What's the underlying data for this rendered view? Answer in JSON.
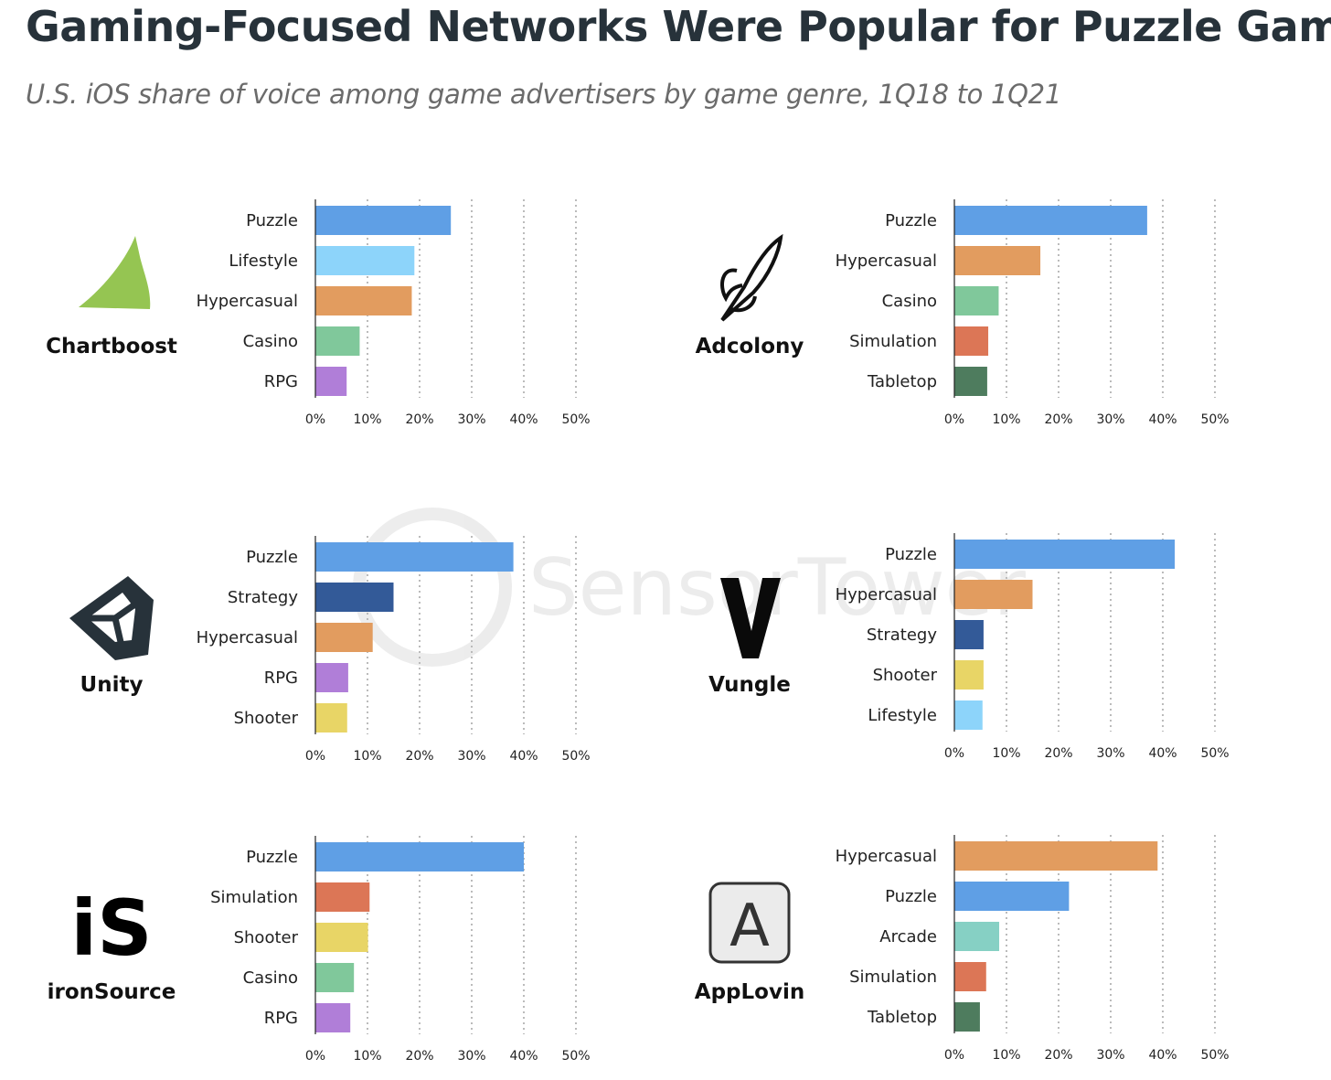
{
  "title": "Gaming-Focused Networks Were Popular for Puzzle Games",
  "subtitle": "U.S. iOS share of voice among game advertisers by game genre, 1Q18 to 1Q21",
  "watermark": "SensorTower",
  "colors": {
    "Puzzle": "#5f9fe5",
    "Lifestyle": "#8dd4fa",
    "Hypercasual": "#e29c5f",
    "Casino": "#80c89b",
    "RPG": "#b07ed8",
    "Simulation": "#dc7656",
    "Tabletop": "#4e7c5e",
    "Strategy": "#335a98",
    "Shooter": "#e8d566",
    "Arcade": "#86d0c4"
  },
  "chart_data": [
    {
      "type": "bar",
      "orientation": "horizontal",
      "network": "Chartboost",
      "categories": [
        "Puzzle",
        "Lifestyle",
        "Hypercasual",
        "Casino",
        "RPG"
      ],
      "values": [
        26,
        19,
        18.5,
        8.5,
        6
      ],
      "xlim": [
        0,
        50
      ],
      "xticks": [
        "0%",
        "10%",
        "20%",
        "30%",
        "40%",
        "50%"
      ]
    },
    {
      "type": "bar",
      "orientation": "horizontal",
      "network": "Adcolony",
      "categories": [
        "Puzzle",
        "Hypercasual",
        "Casino",
        "Simulation",
        "Tabletop"
      ],
      "values": [
        37,
        16.5,
        8.5,
        6.5,
        6.3
      ],
      "xlim": [
        0,
        50
      ],
      "xticks": [
        "0%",
        "10%",
        "20%",
        "30%",
        "40%",
        "50%"
      ]
    },
    {
      "type": "bar",
      "orientation": "horizontal",
      "network": "Unity",
      "categories": [
        "Puzzle",
        "Strategy",
        "Hypercasual",
        "RPG",
        "Shooter"
      ],
      "values": [
        38,
        15,
        11,
        6.3,
        6.1
      ],
      "xlim": [
        0,
        50
      ],
      "xticks": [
        "0%",
        "10%",
        "20%",
        "30%",
        "40%",
        "50%"
      ]
    },
    {
      "type": "bar",
      "orientation": "horizontal",
      "network": "Vungle",
      "categories": [
        "Puzzle",
        "Hypercasual",
        "Strategy",
        "Shooter",
        "Lifestyle"
      ],
      "values": [
        42.3,
        15,
        5.6,
        5.6,
        5.4
      ],
      "xlim": [
        0,
        50
      ],
      "xticks": [
        "0%",
        "10%",
        "20%",
        "30%",
        "40%",
        "50%"
      ]
    },
    {
      "type": "bar",
      "orientation": "horizontal",
      "network": "ironSource",
      "categories": [
        "Puzzle",
        "Simulation",
        "Shooter",
        "Casino",
        "RPG"
      ],
      "values": [
        40,
        10.4,
        10.1,
        7.4,
        6.7
      ],
      "xlim": [
        0,
        50
      ],
      "xticks": [
        "0%",
        "10%",
        "20%",
        "30%",
        "40%",
        "50%"
      ]
    },
    {
      "type": "bar",
      "orientation": "horizontal",
      "network": "AppLovin",
      "categories": [
        "Hypercasual",
        "Puzzle",
        "Arcade",
        "Simulation",
        "Tabletop"
      ],
      "values": [
        39,
        22,
        8.6,
        6.1,
        4.9
      ],
      "xlim": [
        0,
        50
      ],
      "xticks": [
        "0%",
        "10%",
        "20%",
        "30%",
        "40%",
        "50%"
      ]
    }
  ]
}
